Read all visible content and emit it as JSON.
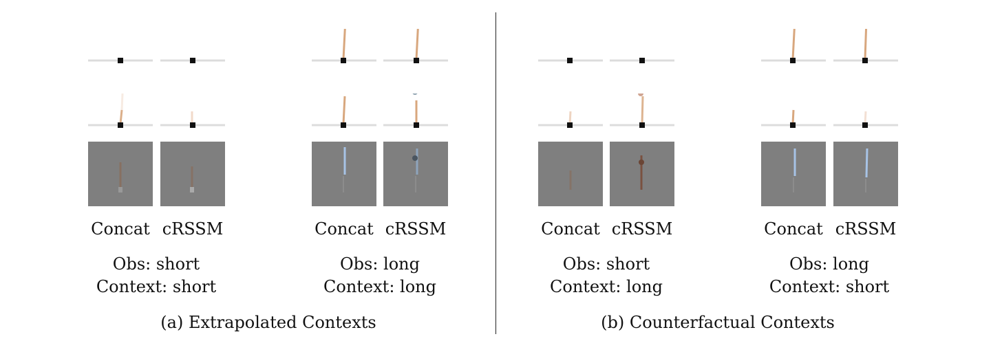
{
  "figure": {
    "left": {
      "methods": [
        "Concat",
        "cRSSM"
      ],
      "groups": [
        {
          "obs_line": "Obs: short",
          "ctx_line": "Context: short"
        },
        {
          "obs_line": "Obs: long",
          "ctx_line": "Context: long"
        }
      ],
      "caption": "(a) Extrapolated Contexts"
    },
    "right": {
      "methods": [
        "Concat",
        "cRSSM"
      ],
      "groups": [
        {
          "obs_line": "Obs: short",
          "ctx_line": "Context: long"
        },
        {
          "obs_line": "Obs: long",
          "ctx_line": "Context: short"
        }
      ],
      "caption": "(b) Counterfactual Contexts"
    }
  },
  "colors": {
    "pole": "#d8a77e",
    "cart": "#111111",
    "track": "#dcdcdc",
    "gray_bg": "#7f7f7f",
    "blue_pole": "#a7c3e6"
  }
}
